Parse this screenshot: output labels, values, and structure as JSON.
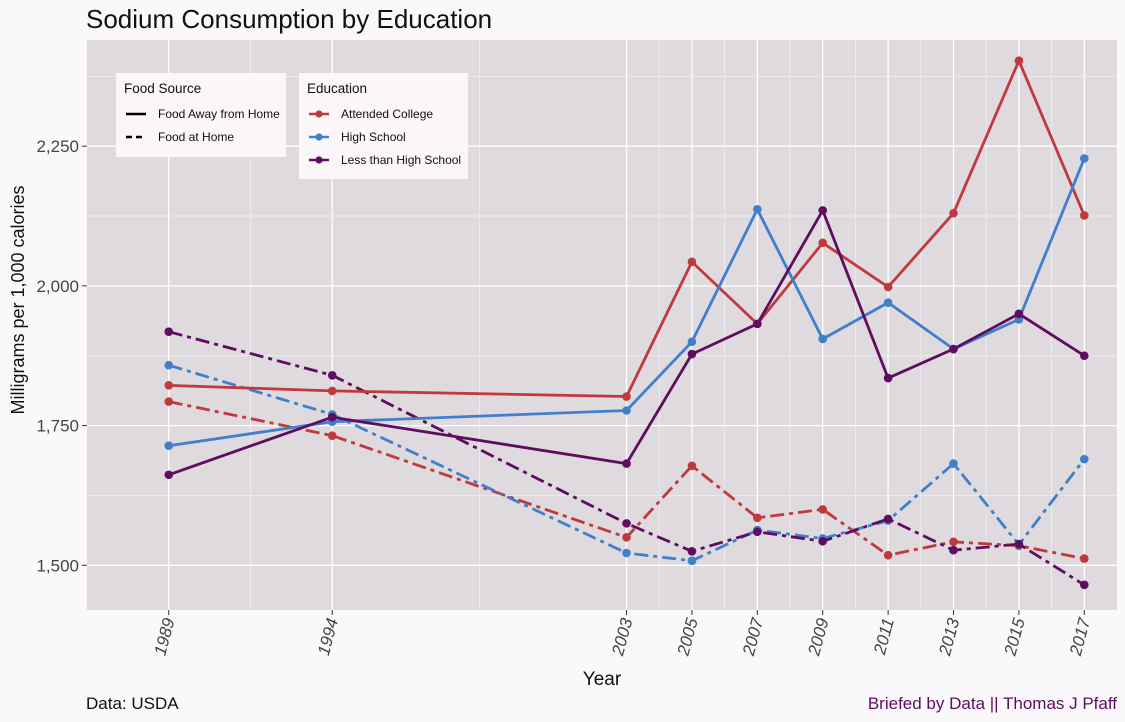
{
  "chart_data": {
    "type": "line",
    "title": "Sodium Consumption by Education",
    "xlabel": "Year",
    "ylabel": "Milligrams per 1,000 calories",
    "x": [
      "1989",
      "1994",
      "2003",
      "2005",
      "2007",
      "2009",
      "2011",
      "2013",
      "2015",
      "2017"
    ],
    "x_numeric": [
      1989,
      1994,
      2003,
      2005,
      2007,
      2009,
      2011,
      2013,
      2015,
      2017
    ],
    "ylim": [
      1420,
      2440
    ],
    "y_ticks": [
      1500,
      1750,
      2000,
      2250
    ],
    "y_tick_labels": [
      "1,500",
      "1,750",
      "2,000",
      "2,250"
    ],
    "grid": true,
    "legend_position": "top-left",
    "legend_food_source": {
      "title": "Food Source",
      "items": [
        {
          "label": "Food Away from Home",
          "style": "solid"
        },
        {
          "label": "Food at Home",
          "style": "dashed"
        }
      ]
    },
    "legend_education": {
      "title": "Education",
      "items": [
        {
          "label": "Attended College",
          "color": "#C0393F"
        },
        {
          "label": "High School",
          "color": "#3F7FCC"
        },
        {
          "label": "Less than High School",
          "color": "#5E0D5F"
        }
      ]
    },
    "series": [
      {
        "name": "Attended College",
        "food_source": "Food Away from Home",
        "color": "#C0393F",
        "style": "solid",
        "values": [
          1822,
          1812,
          1802,
          2043,
          1932,
          2077,
          1998,
          2130,
          2403,
          2126
        ]
      },
      {
        "name": "High School",
        "food_source": "Food Away from Home",
        "color": "#3F7FCC",
        "style": "solid",
        "values": [
          1714,
          1757,
          1777,
          1900,
          2137,
          1905,
          1970,
          1887,
          1940,
          2228
        ]
      },
      {
        "name": "Less than High School",
        "food_source": "Food Away from Home",
        "color": "#5E0D5F",
        "style": "solid",
        "values": [
          1662,
          1765,
          1682,
          1878,
          1932,
          2135,
          1835,
          1887,
          1950,
          1875
        ]
      },
      {
        "name": "Attended College",
        "food_source": "Food at Home",
        "color": "#C0393F",
        "style": "dashed",
        "values": [
          1793,
          1732,
          1550,
          1678,
          1585,
          1600,
          1518,
          1542,
          1535,
          1512
        ]
      },
      {
        "name": "High School",
        "food_source": "Food at Home",
        "color": "#3F7FCC",
        "style": "dashed",
        "values": [
          1858,
          1770,
          1522,
          1508,
          1563,
          1548,
          1580,
          1682,
          1537,
          1690
        ]
      },
      {
        "name": "Less than High School",
        "food_source": "Food at Home",
        "color": "#5E0D5F",
        "style": "dashed",
        "values": [
          1918,
          1840,
          1575,
          1525,
          1560,
          1543,
          1583,
          1527,
          1538,
          1465
        ]
      }
    ]
  },
  "captions": {
    "source": "Data: USDA",
    "credit": "Briefed by Data || Thomas J Pfaff"
  },
  "colors": {
    "panel_background": "#DEDADE",
    "page_background": "#FAF8FB",
    "grid": "#FFFFFF",
    "credit_text": "#5A0F5C"
  }
}
